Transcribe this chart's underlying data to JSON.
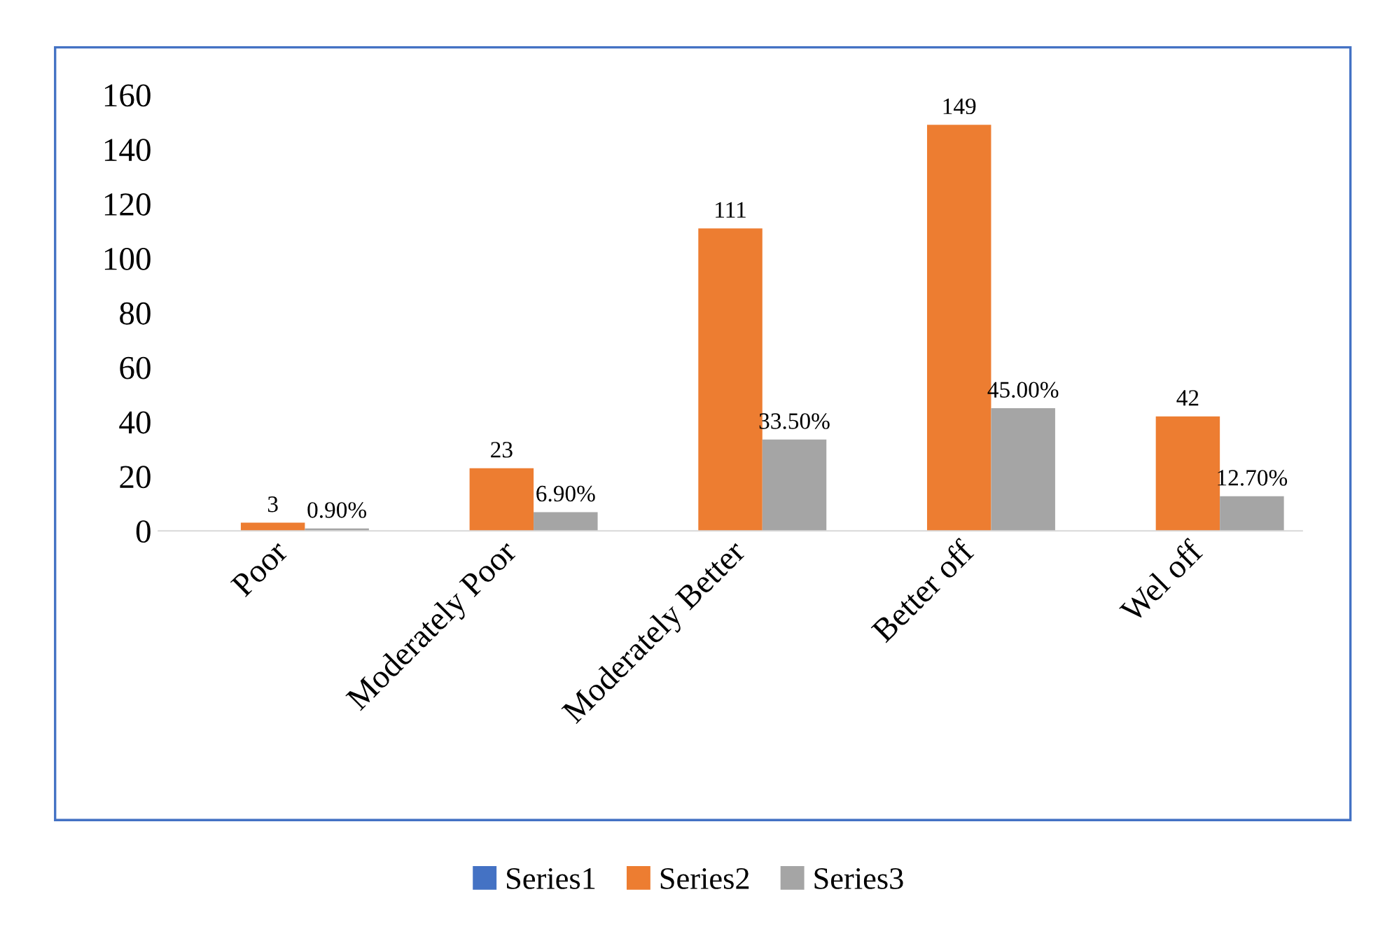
{
  "chart_data": {
    "type": "bar",
    "categories": [
      "Poor",
      "Moderately Poor",
      "Moderately Better",
      "Better off",
      "Wel off"
    ],
    "series": [
      {
        "name": "Series1",
        "color": "#4472c4",
        "values": [
          null,
          null,
          null,
          null,
          null
        ]
      },
      {
        "name": "Series2",
        "color": "#ed7d31",
        "values": [
          3,
          23,
          111,
          149,
          42
        ],
        "value_labels": [
          "3",
          "23",
          "111",
          "149",
          "42"
        ]
      },
      {
        "name": "Series3",
        "color": "#a5a5a5",
        "values": [
          0.9,
          6.9,
          33.5,
          45.0,
          12.7
        ],
        "value_labels": [
          "0.90%",
          "6.90%",
          "33.50%",
          "45.00%",
          "12.70%"
        ]
      }
    ],
    "ylim": [
      0,
      160
    ],
    "yticks": [
      0,
      20,
      40,
      60,
      80,
      100,
      120,
      140,
      160
    ],
    "grid": false,
    "legend": "bottom"
  }
}
